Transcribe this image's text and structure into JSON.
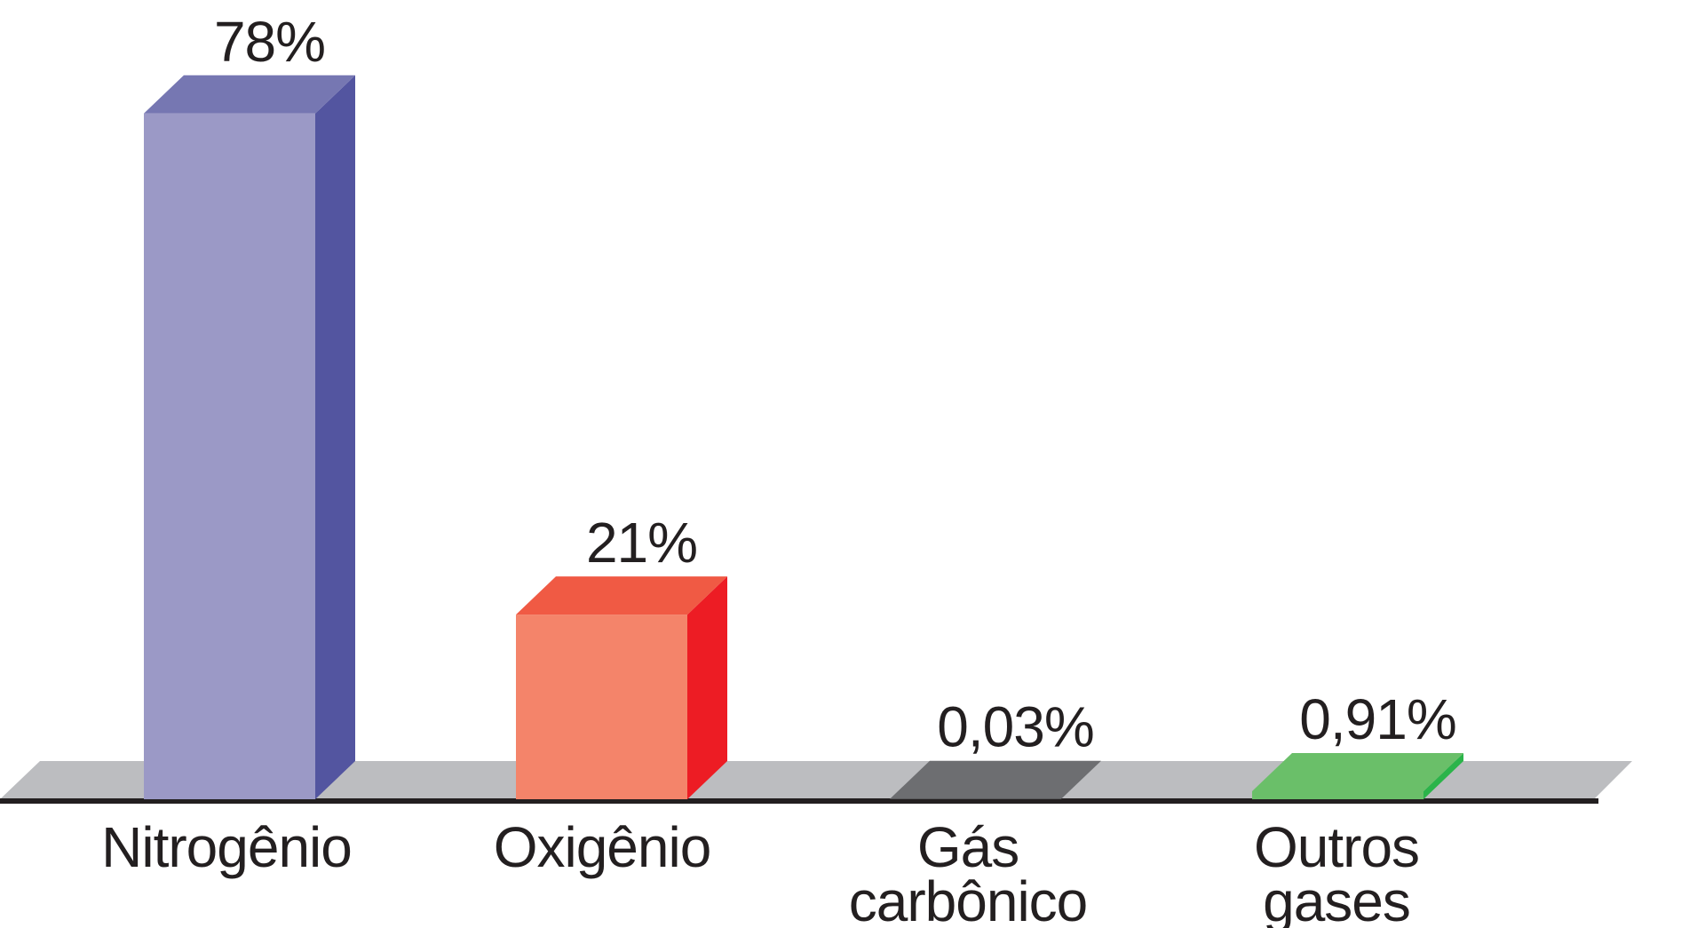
{
  "chart_data": {
    "type": "bar",
    "categories": [
      [
        "Nitrogênio"
      ],
      [
        "Oxigênio"
      ],
      [
        "Gás",
        "carbônico"
      ],
      [
        "Outros",
        "gases"
      ]
    ],
    "values": [
      78,
      21,
      0.03,
      0.91
    ],
    "value_labels": [
      "78%",
      "21%",
      "0,03%",
      "0,91%"
    ],
    "ylim": [
      0,
      100
    ],
    "three_d": true,
    "grid": false,
    "legend": "none",
    "colors": [
      {
        "front": "#9b99c6",
        "side": "#5355a0",
        "top": "#7677b2"
      },
      {
        "front": "#f4846a",
        "side": "#ed1c24",
        "top": "#f05a44"
      },
      {
        "front": "#6d6e71",
        "side": "#58595b",
        "top": "#6d6e71"
      },
      {
        "front": "#6abf69",
        "side": "#2bb44a",
        "top": "#6abf69"
      }
    ],
    "floor_color": "#bcbdc0",
    "baseline_color": "#231f20"
  }
}
